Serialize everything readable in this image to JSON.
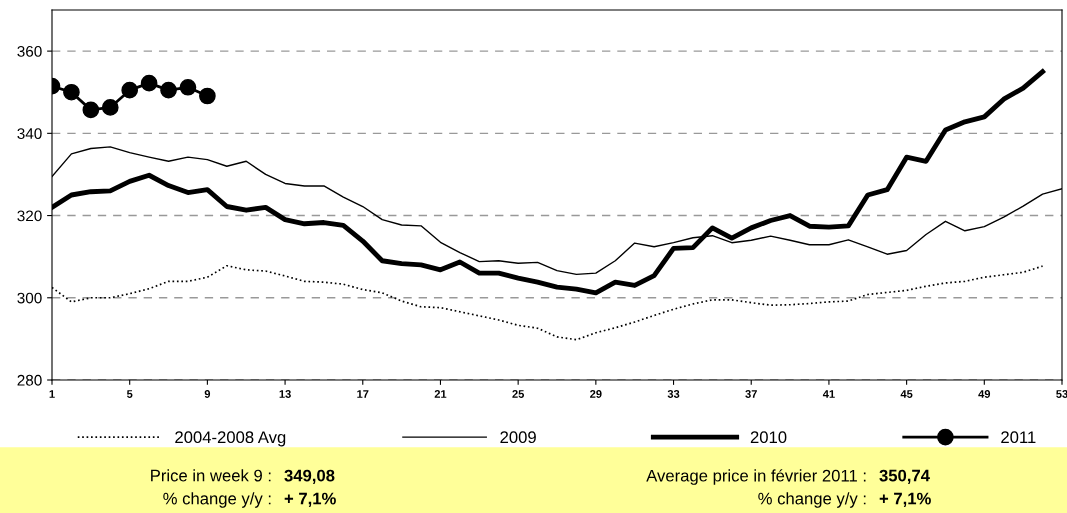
{
  "chart_data": {
    "type": "line",
    "x": [
      1,
      2,
      3,
      4,
      5,
      6,
      7,
      8,
      9,
      10,
      11,
      12,
      13,
      14,
      15,
      16,
      17,
      18,
      19,
      20,
      21,
      22,
      23,
      24,
      25,
      26,
      27,
      28,
      29,
      30,
      31,
      32,
      33,
      34,
      35,
      36,
      37,
      38,
      39,
      40,
      41,
      42,
      43,
      44,
      45,
      46,
      47,
      48,
      49,
      50,
      51,
      52
    ],
    "xlim": [
      1,
      53
    ],
    "xticks": [
      1,
      5,
      9,
      13,
      17,
      21,
      25,
      29,
      33,
      37,
      41,
      45,
      49,
      53
    ],
    "ylim": [
      280,
      370
    ],
    "yticks": [
      280,
      300,
      320,
      340,
      360
    ],
    "grid": "y",
    "legend": "bottom",
    "series": [
      {
        "name": "2004-2008 Avg",
        "color": "#000000",
        "line_style": "dotted",
        "marker": "none",
        "values": [
          302.5,
          299,
          300,
          300,
          301,
          302.2,
          304,
          304,
          305,
          307.8,
          306.8,
          306.5,
          305.3,
          304,
          303.8,
          303.3,
          302,
          301.2,
          299.2,
          297.8,
          297.6,
          296.6,
          295.6,
          294.6,
          293.3,
          292.6,
          290.5,
          289.8,
          291.5,
          292.7,
          294.1,
          295.7,
          297.2,
          298.5,
          299.5,
          299.5,
          298.8,
          298.2,
          298.3,
          298.6,
          299,
          299.2,
          300.8,
          301.3,
          301.8,
          302.8,
          303.6,
          304,
          305,
          305.6,
          306.2,
          307.7
        ]
      },
      {
        "name": "2009",
        "color": "#000000",
        "line_style": "solid",
        "marker": "none",
        "x": [
          1,
          2,
          3,
          4,
          5,
          6,
          7,
          8,
          9,
          10,
          11,
          12,
          13,
          14,
          15,
          16,
          17,
          18,
          19,
          20,
          21,
          22,
          23,
          24,
          25,
          26,
          27,
          28,
          29,
          30,
          31,
          32,
          33,
          34,
          35,
          36,
          37,
          38,
          39,
          40,
          41,
          42,
          43,
          44,
          45,
          46,
          47,
          48,
          49,
          50,
          51,
          52,
          53
        ],
        "values": [
          329.5,
          335,
          336.3,
          336.7,
          335.3,
          334.2,
          333.2,
          334.2,
          333.6,
          332,
          333.2,
          330,
          327.8,
          327.2,
          327.2,
          324.5,
          322.2,
          319,
          317.7,
          317.5,
          313.5,
          311,
          308.8,
          309,
          308.4,
          308.6,
          306.6,
          305.7,
          306,
          309,
          313.3,
          312.4,
          313.4,
          314.6,
          315.1,
          313.4,
          314,
          315,
          314,
          312.9,
          312.9,
          314.1,
          312.4,
          310.6,
          311.5,
          315.4,
          318.6,
          316.3,
          317.3,
          319.6,
          322.3,
          325.2,
          326.5
        ]
      },
      {
        "name": "2010",
        "color": "#000000",
        "line_style": "solid",
        "marker": "none",
        "values": [
          322,
          325,
          325.8,
          326,
          328.3,
          329.8,
          327.3,
          325.6,
          326.3,
          322.2,
          321.3,
          322,
          319,
          318,
          318.3,
          317.6,
          313.8,
          309,
          308.3,
          308,
          306.8,
          308.7,
          306,
          306,
          304.8,
          303.8,
          302.6,
          302.1,
          301.2,
          303.8,
          303,
          305.4,
          312,
          312.2,
          317,
          314.5,
          317,
          318.8,
          320,
          317.4,
          317.2,
          317.5,
          325,
          326.3,
          334.2,
          333.2,
          340.8,
          342.8,
          344,
          348.3,
          351,
          355
        ]
      },
      {
        "name": "2011",
        "color": "#000000",
        "line_style": "solid",
        "marker": "circle",
        "x": [
          1,
          2,
          3,
          4,
          5,
          6,
          7,
          8,
          9
        ],
        "values": [
          351.5,
          350,
          345.7,
          346.3,
          350.5,
          352.2,
          350.5,
          351.2,
          349.08
        ]
      }
    ],
    "annotations": [
      "Price in week 9 :",
      "349,08",
      "% change y/y :",
      "+ 7,1%",
      "Average price in février 2011 :",
      "350,74",
      "% change y/y :",
      "+ 7,1%"
    ]
  }
}
